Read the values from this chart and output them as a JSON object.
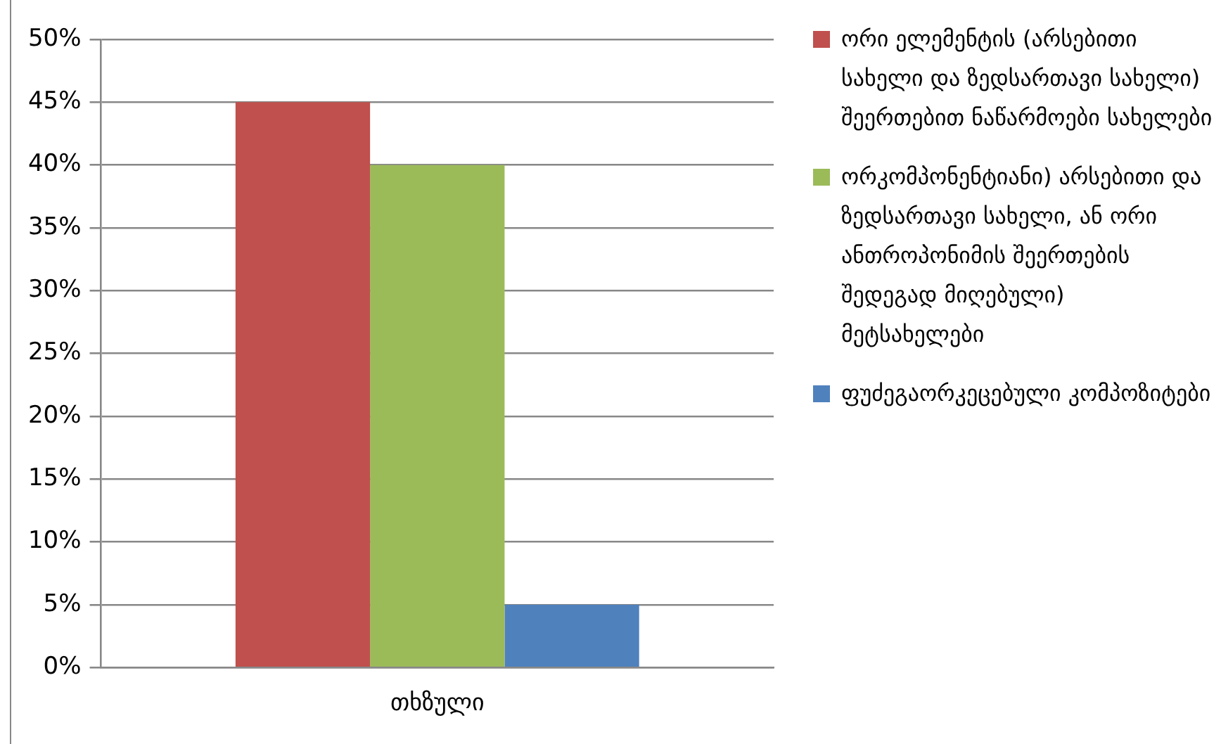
{
  "chart_data": {
    "type": "bar",
    "categories": [
      "თხზული"
    ],
    "series": [
      {
        "name": "ორი ელემენტის (არსებითი სახელი და ზედსართავი სახელი) შეერთებით ნაწარმოები სახელები",
        "color": "#c0504d",
        "values": [
          45
        ]
      },
      {
        "name": "ორკომპონენტიანი) არსებითი და ზედსართავი სახელი, ან ორი ანთროპონიმის შეერთების შედეგად მიღებული) მეტსახელები",
        "color": "#9bbb59",
        "values": [
          40
        ]
      },
      {
        "name": "ფუძეგაორკეცებული კომპოზიტები",
        "color": "#4f81bd",
        "values": [
          5
        ]
      }
    ],
    "ylim": [
      0,
      50
    ],
    "yticks": [
      {
        "value": 0,
        "label": "0%"
      },
      {
        "value": 5,
        "label": "5%"
      },
      {
        "value": 10,
        "label": "10%"
      },
      {
        "value": 15,
        "label": "15%"
      },
      {
        "value": 20,
        "label": "20%"
      },
      {
        "value": 25,
        "label": "25%"
      },
      {
        "value": 30,
        "label": "30%"
      },
      {
        "value": 35,
        "label": "35%"
      },
      {
        "value": 40,
        "label": "40%"
      },
      {
        "value": 45,
        "label": "45%"
      },
      {
        "value": 50,
        "label": "50%"
      }
    ],
    "grid": "y",
    "legend": "right"
  }
}
